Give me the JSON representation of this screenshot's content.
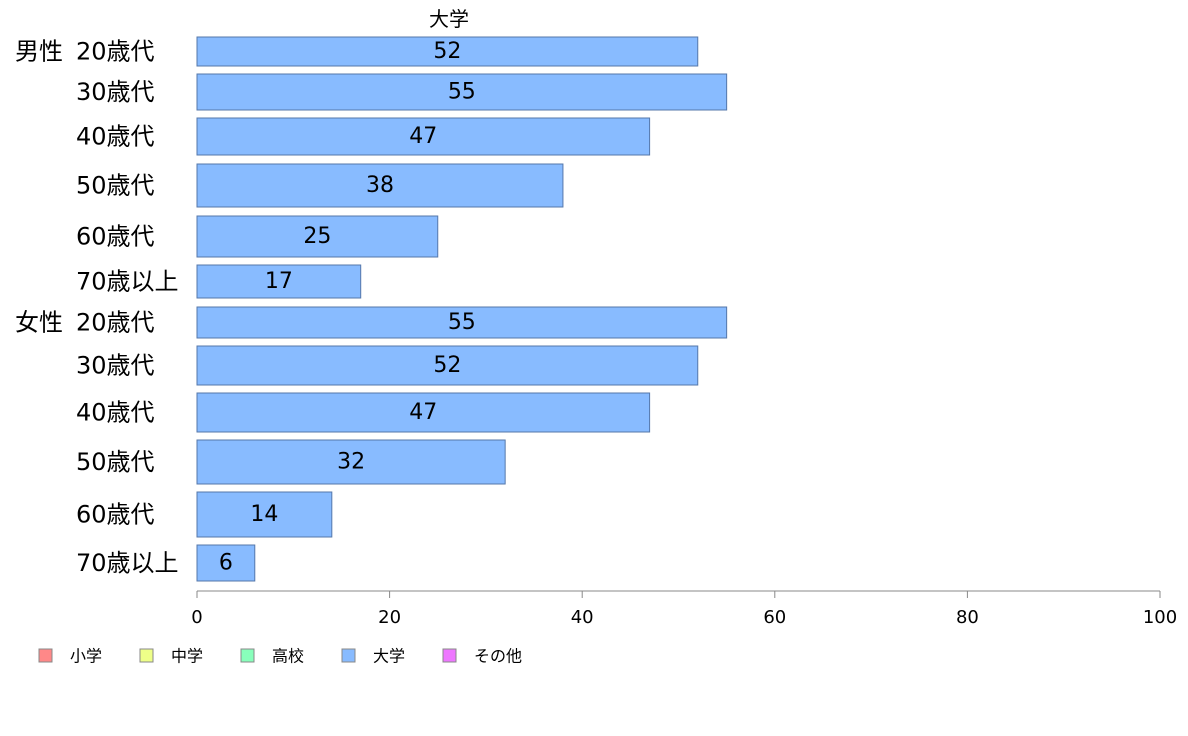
{
  "chart_data": {
    "type": "bar",
    "orientation": "horizontal",
    "title": "大学",
    "groups": [
      {
        "label": "男性",
        "categories": [
          "20歳代",
          "30歳代",
          "40歳代",
          "50歳代",
          "60歳代",
          "70歳以上"
        ]
      },
      {
        "label": "女性",
        "categories": [
          "20歳代",
          "30歳代",
          "40歳代",
          "50歳代",
          "60歳代",
          "70歳以上"
        ]
      }
    ],
    "categories": [
      "20歳代",
      "30歳代",
      "40歳代",
      "50歳代",
      "60歳代",
      "70歳以上",
      "20歳代",
      "30歳代",
      "40歳代",
      "50歳代",
      "60歳代",
      "70歳以上"
    ],
    "series": [
      {
        "name": "大学",
        "color": "#88bbff",
        "values": [
          52,
          55,
          47,
          38,
          25,
          17,
          55,
          52,
          47,
          32,
          14,
          6
        ]
      }
    ],
    "value_axis": {
      "min": 0,
      "max": 100,
      "ticks": [
        "0",
        "20",
        "40",
        "60",
        "80",
        "100"
      ]
    },
    "legend": {
      "placement": "bottom-left",
      "items": [
        {
          "label": "小学",
          "color": "#ff8888"
        },
        {
          "label": "中学",
          "color": "#eeff88"
        },
        {
          "label": "高校",
          "color": "#88ffbb"
        },
        {
          "label": "大学",
          "color": "#88bbff"
        },
        {
          "label": "その他",
          "color": "#ee77ff"
        }
      ]
    },
    "bar_border_color": "#5577aa",
    "axis_color": "#888888"
  }
}
